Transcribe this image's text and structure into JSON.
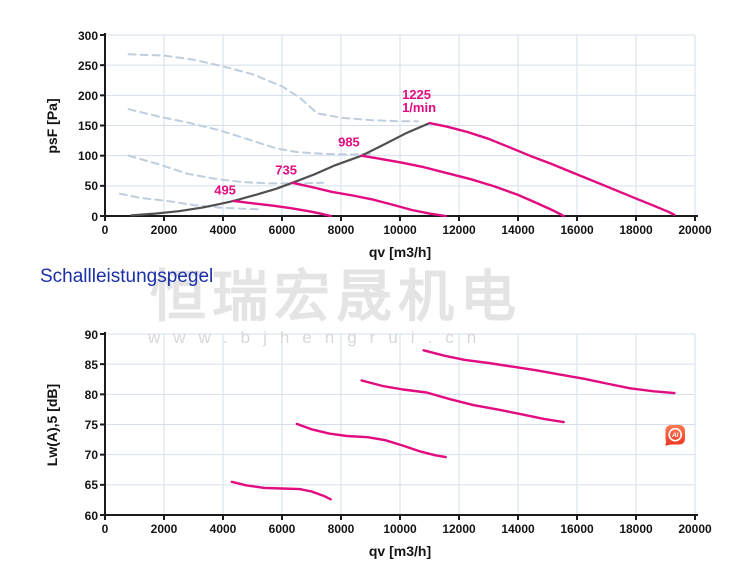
{
  "section_title": "Schallleistungspegel",
  "watermark": {
    "cn": "恒瑞宏晟机电",
    "url": "www.bjhengrui.cn"
  },
  "ai_badge": {
    "label": "AI"
  },
  "colors": {
    "curve_pink": "#e20b80",
    "curve_gray": "#4f4f4f",
    "curve_reference": "#bfcede",
    "grid": "#d5dfeb",
    "axis": "#1b1b1b",
    "tick_text": "#141414",
    "section_title_blue": "#1b2fa8",
    "watermark_gray": "#e4e4e4",
    "badge_orange": "#f4503a"
  },
  "chart_data": [
    {
      "type": "line",
      "id": "pressure",
      "xlabel": "qv [m3/h]",
      "ylabel": "psF [Pa]",
      "xlim": [
        0,
        20000
      ],
      "ylim": [
        0,
        300
      ],
      "xticks": [
        0,
        2000,
        4000,
        6000,
        8000,
        10000,
        12000,
        14000,
        16000,
        18000,
        20000
      ],
      "yticks": [
        0,
        50,
        100,
        150,
        200,
        250,
        300
      ],
      "grid": true,
      "series": [
        {
          "name": "reference-1",
          "style": "dashed",
          "color": "#bfcede",
          "width": 2,
          "points": [
            [
              800,
              268
            ],
            [
              2000,
              266
            ],
            [
              3000,
              259
            ],
            [
              4000,
              248
            ],
            [
              5000,
              235
            ],
            [
              6000,
              215
            ],
            [
              6600,
              196
            ],
            [
              7200,
              170
            ],
            [
              8000,
              163
            ],
            [
              9000,
              159
            ],
            [
              10000,
              157
            ],
            [
              10600,
              157
            ]
          ]
        },
        {
          "name": "reference-2",
          "style": "dashed",
          "color": "#bfcede",
          "width": 2,
          "points": [
            [
              800,
              177
            ],
            [
              1800,
              165
            ],
            [
              2800,
              155
            ],
            [
              3800,
              143
            ],
            [
              4800,
              128
            ],
            [
              5800,
              112
            ],
            [
              6500,
              106
            ],
            [
              7400,
              103
            ],
            [
              8300,
              102
            ],
            [
              9000,
              103
            ]
          ]
        },
        {
          "name": "reference-3",
          "style": "dashed",
          "color": "#bfcede",
          "width": 2,
          "points": [
            [
              800,
              100
            ],
            [
              1800,
              86
            ],
            [
              2800,
              70
            ],
            [
              3800,
              61
            ],
            [
              4700,
              56
            ],
            [
              5600,
              54
            ],
            [
              6500,
              54
            ],
            [
              7400,
              55
            ]
          ]
        },
        {
          "name": "reference-4",
          "style": "dashed",
          "color": "#bfcede",
          "width": 2,
          "points": [
            [
              500,
              37
            ],
            [
              1200,
              30
            ],
            [
              2100,
              25
            ],
            [
              3000,
              18
            ],
            [
              3900,
              14
            ],
            [
              4700,
              12
            ],
            [
              5300,
              11
            ]
          ]
        },
        {
          "name": "limit-curve",
          "style": "solid",
          "color": "#4f4f4f",
          "width": 2.2,
          "points": [
            [
              900,
              1
            ],
            [
              1700,
              4
            ],
            [
              2500,
              8
            ],
            [
              3300,
              14
            ],
            [
              3900,
              20
            ],
            [
              4360,
              25
            ],
            [
              5100,
              35
            ],
            [
              5800,
              45
            ],
            [
              6350,
              55
            ],
            [
              7100,
              69
            ],
            [
              7800,
              84
            ],
            [
              8700,
              100
            ],
            [
              9400,
              117
            ],
            [
              10200,
              137
            ],
            [
              11000,
              154
            ]
          ]
        },
        {
          "name": "fan-495-1min",
          "rpm": 495,
          "style": "solid",
          "color": "#e20b80",
          "width": 2.4,
          "points": [
            [
              4360,
              25
            ],
            [
              5000,
              21
            ],
            [
              5700,
              17
            ],
            [
              6300,
              13
            ],
            [
              6900,
              8
            ],
            [
              7300,
              4
            ],
            [
              7650,
              0
            ]
          ]
        },
        {
          "name": "fan-735-1min",
          "rpm": 735,
          "style": "solid",
          "color": "#e20b80",
          "width": 2.4,
          "points": [
            [
              6350,
              55
            ],
            [
              7000,
              48
            ],
            [
              7700,
              40
            ],
            [
              8400,
              34
            ],
            [
              9100,
              27
            ],
            [
              9800,
              18
            ],
            [
              10400,
              10
            ],
            [
              11000,
              4
            ],
            [
              11550,
              0
            ]
          ]
        },
        {
          "name": "fan-985-1min",
          "rpm": 985,
          "style": "solid",
          "color": "#e20b80",
          "width": 2.4,
          "points": [
            [
              8700,
              100
            ],
            [
              9300,
              95
            ],
            [
              10000,
              89
            ],
            [
              10800,
              81
            ],
            [
              11600,
              71
            ],
            [
              12400,
              61
            ],
            [
              13200,
              49
            ],
            [
              14000,
              35
            ],
            [
              14700,
              20
            ],
            [
              15200,
              9
            ],
            [
              15550,
              0
            ]
          ]
        },
        {
          "name": "fan-1225-1min",
          "rpm": 1225,
          "style": "solid",
          "color": "#e20b80",
          "width": 2.4,
          "points": [
            [
              11000,
              154
            ],
            [
              11600,
              148
            ],
            [
              12300,
              139
            ],
            [
              13000,
              128
            ],
            [
              13700,
              114
            ],
            [
              14400,
              100
            ],
            [
              15100,
              87
            ],
            [
              15800,
              73
            ],
            [
              16500,
              59
            ],
            [
              17200,
              45
            ],
            [
              17900,
              31
            ],
            [
              18600,
              17
            ],
            [
              19100,
              7
            ],
            [
              19300,
              2
            ]
          ]
        }
      ],
      "annotations": [
        {
          "lines": [
            "495"
          ],
          "x": 4070,
          "y": 43,
          "align": "center"
        },
        {
          "lines": [
            "735"
          ],
          "x": 6140,
          "y": 76,
          "align": "center"
        },
        {
          "lines": [
            "985"
          ],
          "x": 8270,
          "y": 123,
          "align": "center"
        },
        {
          "lines": [
            "1225",
            "1/min"
          ],
          "x": 10070,
          "y": 190,
          "align": "left"
        }
      ]
    },
    {
      "type": "line",
      "id": "sound",
      "xlabel": "qv [m3/h]",
      "ylabel": "Lw(A),5 [dB]",
      "xlim": [
        0,
        20000
      ],
      "ylim": [
        60,
        90
      ],
      "xticks": [
        0,
        2000,
        4000,
        6000,
        8000,
        10000,
        12000,
        14000,
        16000,
        18000,
        20000
      ],
      "yticks": [
        60,
        65,
        70,
        75,
        80,
        85,
        90
      ],
      "grid": true,
      "series": [
        {
          "name": "sound-495-1min",
          "rpm": 495,
          "style": "solid",
          "color": "#e20b80",
          "width": 2.4,
          "points": [
            [
              4300,
              65.5
            ],
            [
              4800,
              64.9
            ],
            [
              5400,
              64.5
            ],
            [
              6000,
              64.4
            ],
            [
              6600,
              64.3
            ],
            [
              7000,
              63.9
            ],
            [
              7400,
              63.2
            ],
            [
              7650,
              62.6
            ]
          ]
        },
        {
          "name": "sound-735-1min",
          "rpm": 735,
          "style": "solid",
          "color": "#e20b80",
          "width": 2.4,
          "points": [
            [
              6500,
              75.1
            ],
            [
              7000,
              74.2
            ],
            [
              7600,
              73.5
            ],
            [
              8200,
              73.1
            ],
            [
              8900,
              72.9
            ],
            [
              9500,
              72.4
            ],
            [
              10100,
              71.5
            ],
            [
              10700,
              70.5
            ],
            [
              11200,
              69.9
            ],
            [
              11550,
              69.6
            ]
          ]
        },
        {
          "name": "sound-985-1min",
          "rpm": 985,
          "style": "solid",
          "color": "#e20b80",
          "width": 2.4,
          "points": [
            [
              8700,
              82.3
            ],
            [
              9400,
              81.4
            ],
            [
              10100,
              80.8
            ],
            [
              10900,
              80.3
            ],
            [
              11700,
              79.2
            ],
            [
              12500,
              78.2
            ],
            [
              13300,
              77.5
            ],
            [
              14100,
              76.7
            ],
            [
              14900,
              75.9
            ],
            [
              15550,
              75.4
            ]
          ]
        },
        {
          "name": "sound-1225-1min",
          "rpm": 1225,
          "style": "solid",
          "color": "#e20b80",
          "width": 2.4,
          "points": [
            [
              10800,
              87.3
            ],
            [
              11500,
              86.4
            ],
            [
              12200,
              85.7
            ],
            [
              13000,
              85.2
            ],
            [
              13800,
              84.6
            ],
            [
              14600,
              84.0
            ],
            [
              15400,
              83.3
            ],
            [
              16200,
              82.6
            ],
            [
              17000,
              81.8
            ],
            [
              17800,
              81.0
            ],
            [
              18600,
              80.5
            ],
            [
              19300,
              80.2
            ]
          ]
        }
      ],
      "annotations": []
    }
  ]
}
